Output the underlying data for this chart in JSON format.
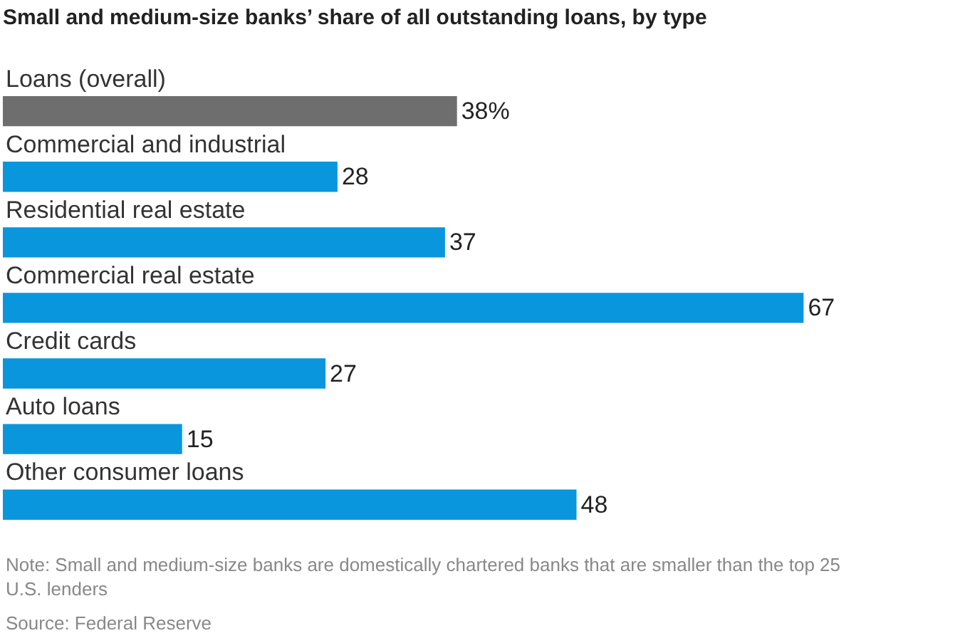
{
  "chart_data": {
    "type": "bar",
    "orientation": "horizontal",
    "title": "Small and medium-size banks’ share of all outstanding loans, by type",
    "categories": [
      "Loans (overall)",
      "Commercial and industrial",
      "Residential real estate",
      "Commercial real estate",
      "Credit cards",
      "Auto loans",
      "Other consumer loans"
    ],
    "values": [
      38,
      28,
      37,
      67,
      27,
      15,
      48
    ],
    "value_labels": [
      "38%",
      "28",
      "37",
      "67",
      "27",
      "15",
      "48"
    ],
    "colors": [
      "#6e6e6e",
      "#0a96dc",
      "#0a96dc",
      "#0a96dc",
      "#0a96dc",
      "#0a96dc",
      "#0a96dc"
    ],
    "annotations": [
      "Note: Small and medium-size banks are domestically chartered banks that are smaller than the top 25 U.S. lenders",
      "Source: Federal Reserve"
    ]
  }
}
